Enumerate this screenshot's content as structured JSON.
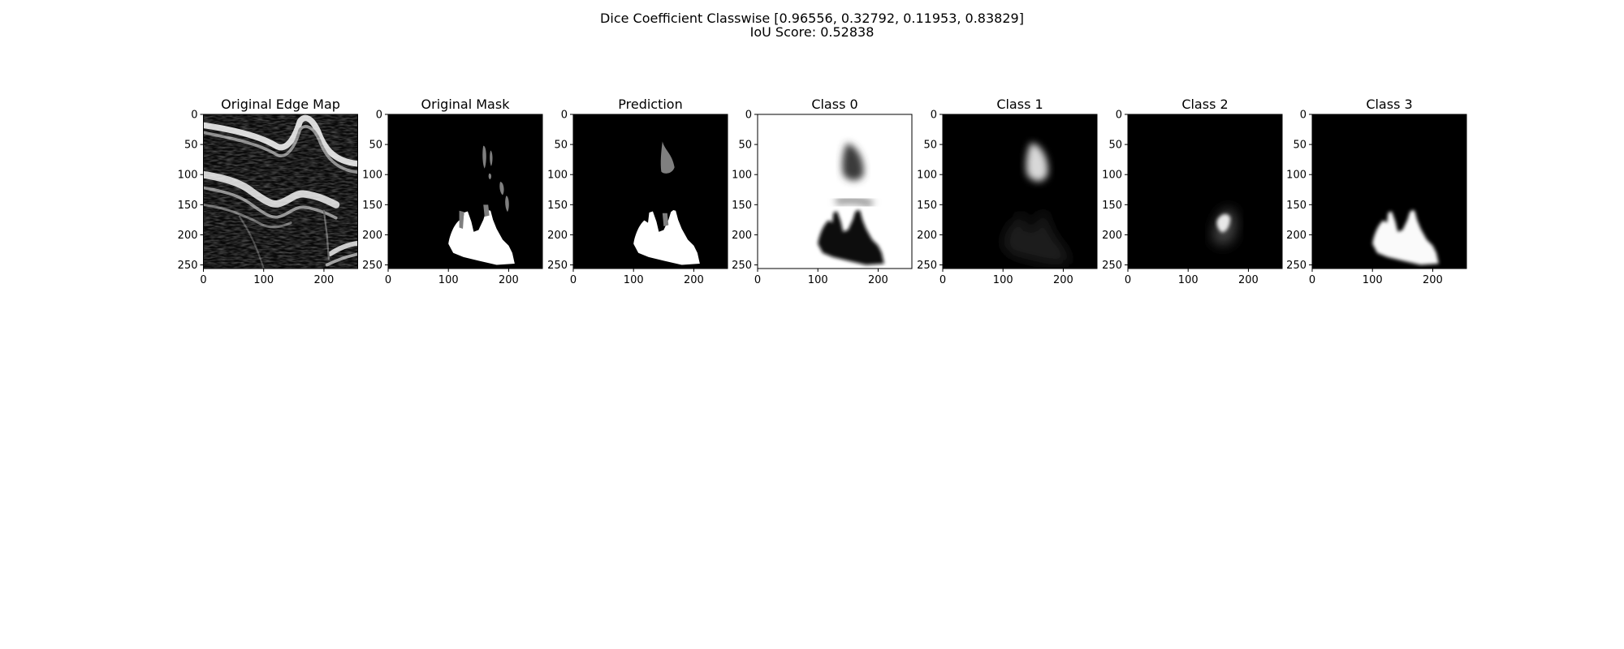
{
  "figure": {
    "title_line1": "Dice Coefficient Classwise [0.96556, 0.32792, 0.11953, 0.83829]",
    "title_line2": "IoU Score: 0.52838"
  },
  "chart_data": {
    "type": "heatmap",
    "layout": "1x7 image panels",
    "dice_coefficient_classwise": [
      0.96556,
      0.32792,
      0.11953,
      0.83829
    ],
    "iou_score": 0.52838,
    "colormap": "gray",
    "xlim": [
      0,
      256
    ],
    "ylim": [
      256,
      0
    ],
    "x_ticks": [
      0,
      100,
      200
    ],
    "y_ticks": [
      0,
      50,
      100,
      150,
      200,
      250
    ],
    "panels": [
      {
        "title": "Original Edge Map",
        "content": "edge"
      },
      {
        "title": "Original Mask",
        "content": "mask"
      },
      {
        "title": "Prediction",
        "content": "prediction"
      },
      {
        "title": "Class 0",
        "content": "class0"
      },
      {
        "title": "Class 1",
        "content": "class1"
      },
      {
        "title": "Class 2",
        "content": "class2"
      },
      {
        "title": "Class 3",
        "content": "class3"
      }
    ]
  }
}
